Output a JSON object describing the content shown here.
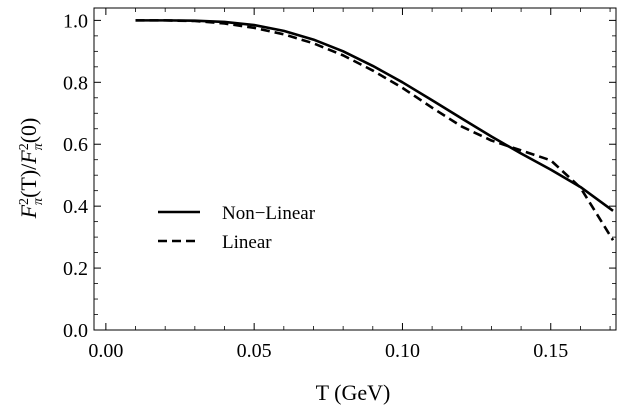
{
  "chart_data": {
    "type": "line",
    "xlabel": "T (GeV)",
    "ylabel": "Fπ²(T)/Fπ²(0)",
    "ylabel_parts": {
      "f1": "F",
      "sup1": "2",
      "sub1": "π",
      "mid": "(T)/",
      "f2": "F",
      "sup2": "2",
      "sub2": "π",
      "end": "(0)"
    },
    "xlim": [
      -0.004,
      0.172
    ],
    "ylim": [
      0.0,
      1.04
    ],
    "xticks": [
      0.0,
      0.05,
      0.1,
      0.15
    ],
    "xtick_labels": [
      "0.00",
      "0.05",
      "0.10",
      "0.15"
    ],
    "yticks": [
      0.0,
      0.2,
      0.4,
      0.6,
      0.8,
      1.0
    ],
    "ytick_labels": [
      "0.0",
      "0.2",
      "0.4",
      "0.6",
      "0.8",
      "1.0"
    ],
    "legend_position": "left-middle",
    "grid": false,
    "series": [
      {
        "name": "Non−Linear",
        "style": "solid",
        "x": [
          0.01,
          0.02,
          0.03,
          0.04,
          0.05,
          0.06,
          0.07,
          0.08,
          0.09,
          0.1,
          0.11,
          0.12,
          0.13,
          0.14,
          0.15,
          0.16,
          0.171
        ],
        "y": [
          1.0,
          1.0,
          0.999,
          0.995,
          0.985,
          0.966,
          0.938,
          0.9,
          0.853,
          0.8,
          0.742,
          0.683,
          0.625,
          0.57,
          0.518,
          0.462,
          0.385
        ]
      },
      {
        "name": "Linear",
        "style": "dashed",
        "x": [
          0.01,
          0.02,
          0.03,
          0.04,
          0.05,
          0.06,
          0.07,
          0.08,
          0.09,
          0.1,
          0.11,
          0.12,
          0.13,
          0.14,
          0.15,
          0.16,
          0.171
        ],
        "y": [
          1.0,
          1.0,
          0.998,
          0.99,
          0.976,
          0.955,
          0.926,
          0.887,
          0.838,
          0.782,
          0.718,
          0.657,
          0.612,
          0.58,
          0.548,
          0.46,
          0.29
        ]
      }
    ]
  }
}
